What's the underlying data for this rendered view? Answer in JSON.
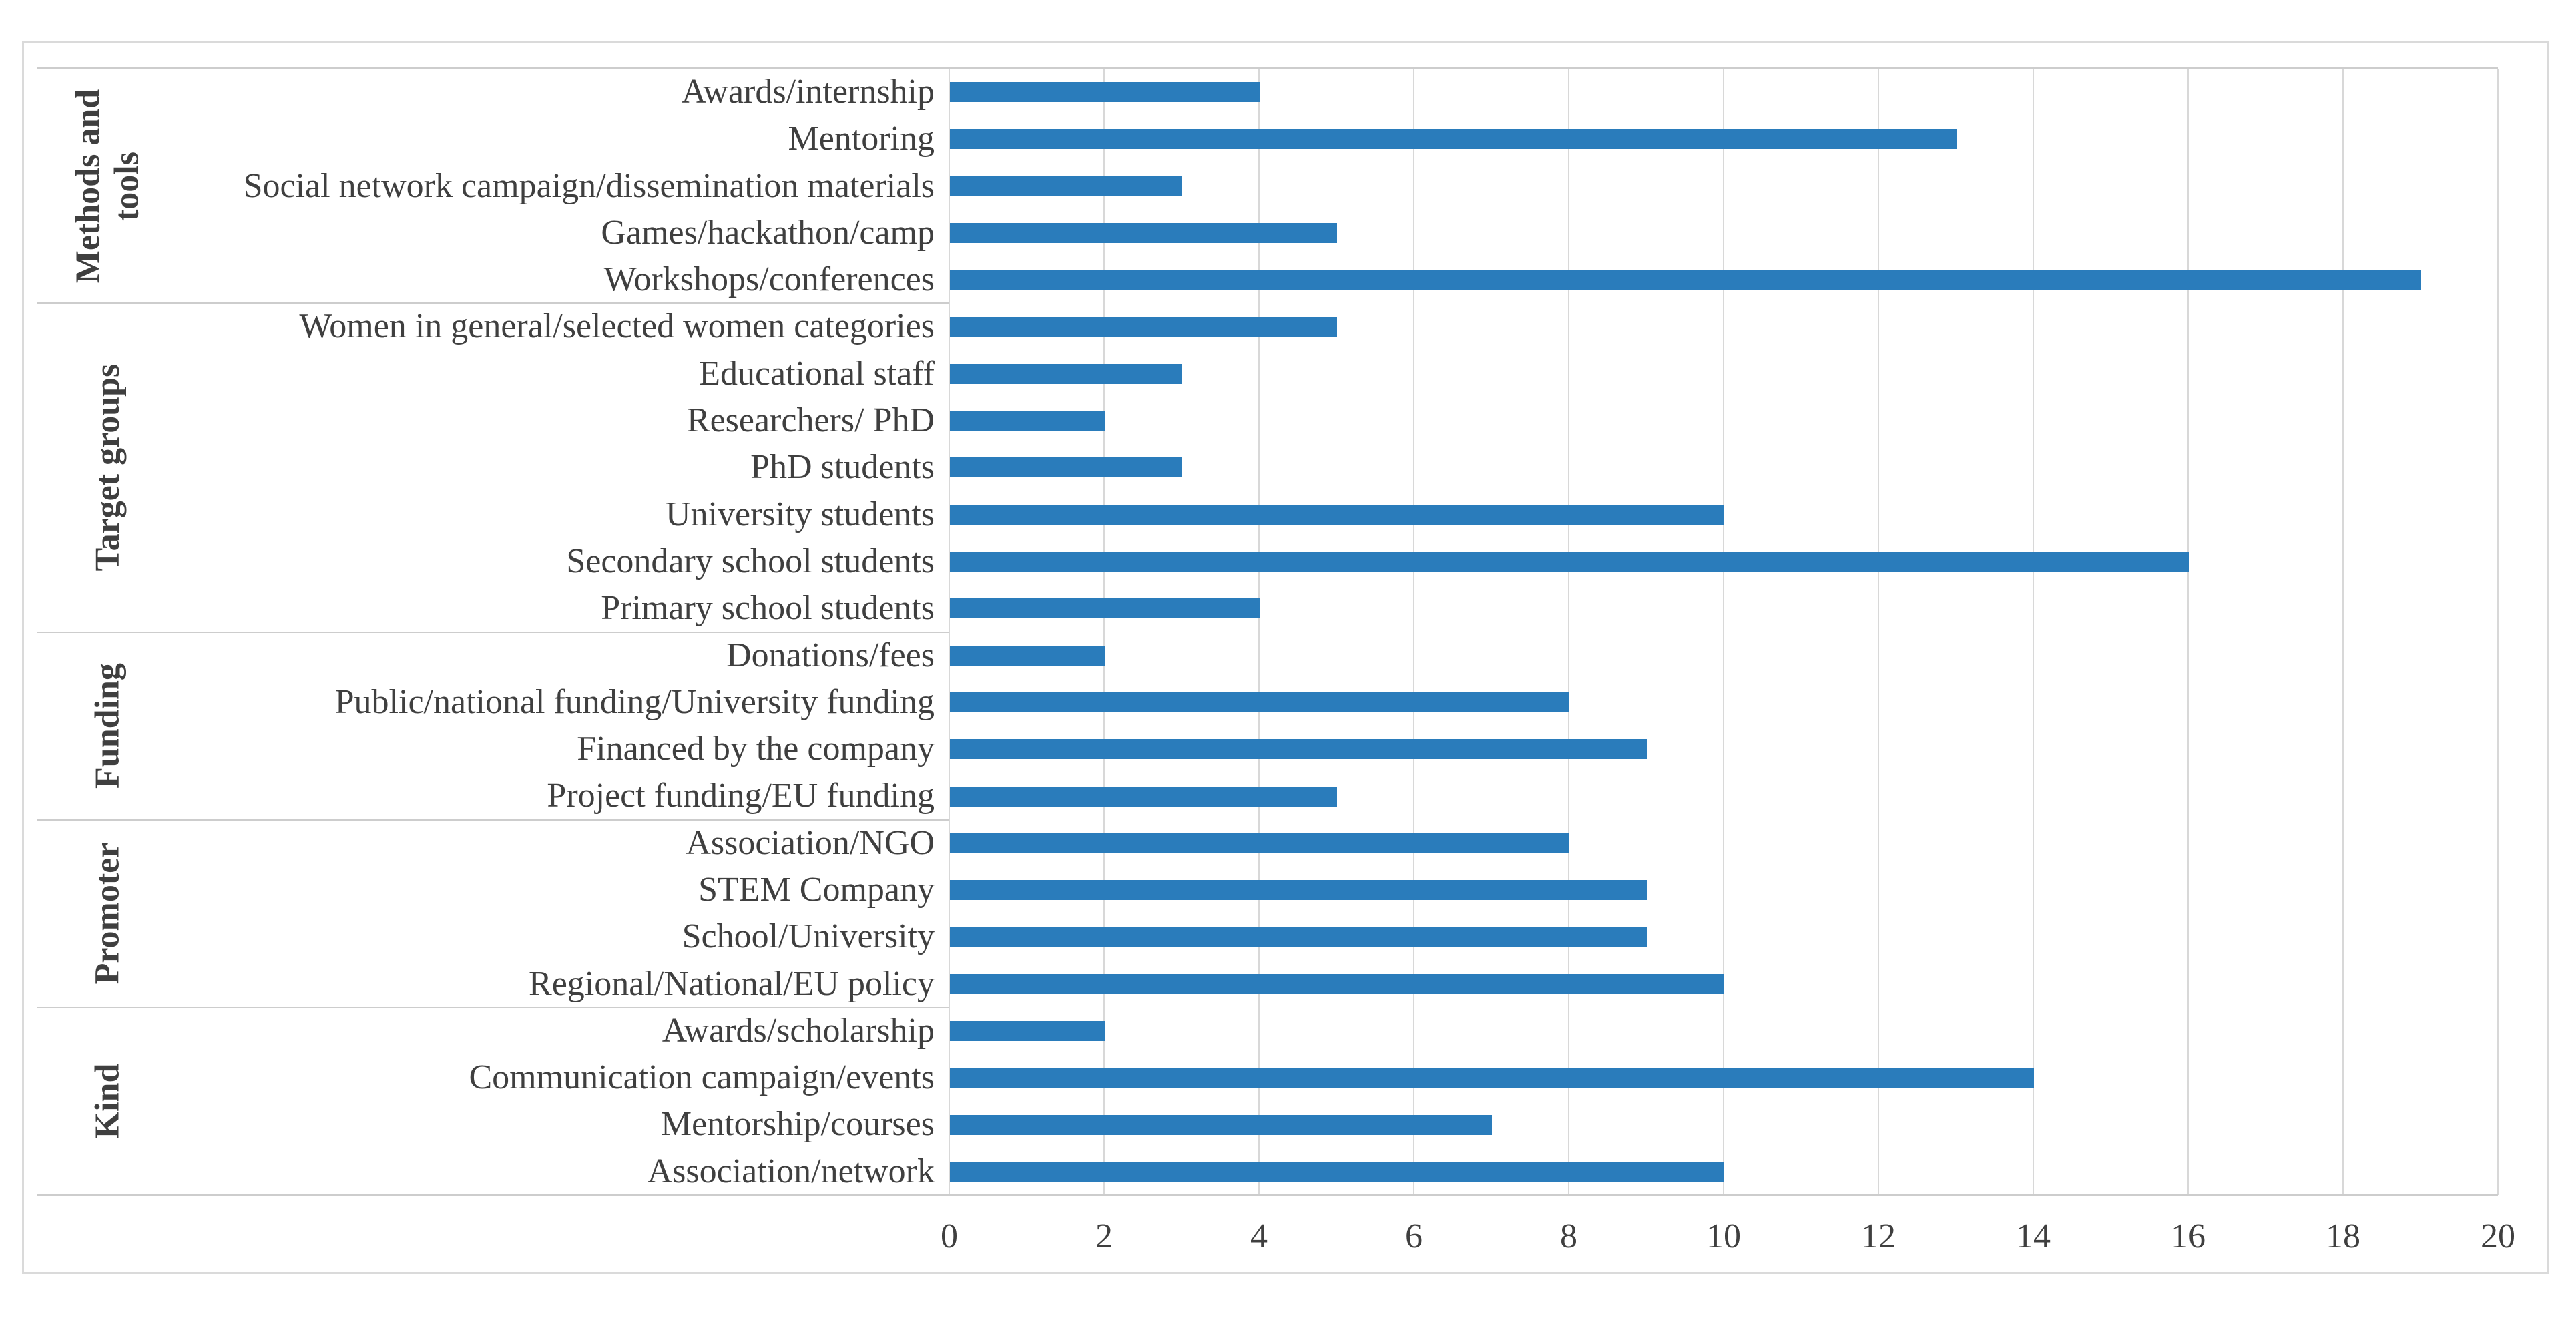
{
  "chart_data": {
    "type": "bar",
    "orientation": "horizontal",
    "title": "",
    "xlabel": "",
    "ylabel": "",
    "xlim": [
      0,
      20
    ],
    "x_ticks": [
      0,
      2,
      4,
      6,
      8,
      10,
      12,
      14,
      16,
      18,
      20
    ],
    "grid": true,
    "legend": "none",
    "bar_color": "#2A7CBB",
    "groups": [
      {
        "label": "Methods and tools",
        "items": [
          {
            "category": "Awards/internship",
            "value": 4
          },
          {
            "category": "Mentoring",
            "value": 13
          },
          {
            "category": "Social network campaign/dissemination materials",
            "value": 3
          },
          {
            "category": "Games/hackathon/camp",
            "value": 5
          },
          {
            "category": "Workshops/conferences",
            "value": 19
          }
        ]
      },
      {
        "label": "Target groups",
        "items": [
          {
            "category": "Women in general/selected women categories",
            "value": 5
          },
          {
            "category": "Educational staff",
            "value": 3
          },
          {
            "category": "Researchers/ PhD",
            "value": 2
          },
          {
            "category": "PhD students",
            "value": 3
          },
          {
            "category": "University students",
            "value": 10
          },
          {
            "category": "Secondary school students",
            "value": 16
          },
          {
            "category": "Primary school students",
            "value": 4
          }
        ]
      },
      {
        "label": "Funding",
        "items": [
          {
            "category": "Donations/fees",
            "value": 2
          },
          {
            "category": "Public/national funding/University funding",
            "value": 8
          },
          {
            "category": "Financed by the company",
            "value": 9
          },
          {
            "category": "Project funding/EU funding",
            "value": 5
          }
        ]
      },
      {
        "label": "Promoter",
        "items": [
          {
            "category": "Association/NGO",
            "value": 8
          },
          {
            "category": "STEM Company",
            "value": 9
          },
          {
            "category": "School/University",
            "value": 9
          },
          {
            "category": "Regional/National/EU policy",
            "value": 10
          }
        ]
      },
      {
        "label": "Kind",
        "items": [
          {
            "category": "Awards/scholarship",
            "value": 2
          },
          {
            "category": "Communication campaign/events",
            "value": 14
          },
          {
            "category": "Mentorship/courses",
            "value": 7
          },
          {
            "category": "Association/network",
            "value": 10
          }
        ]
      }
    ]
  },
  "colors": {
    "bar": "#2A7CBB",
    "gridline": "#D8D8D8",
    "separator": "#CDCDCD",
    "figure_border": "#DADADA",
    "text": "#3F3F3F",
    "background": "#FFFFFF"
  }
}
